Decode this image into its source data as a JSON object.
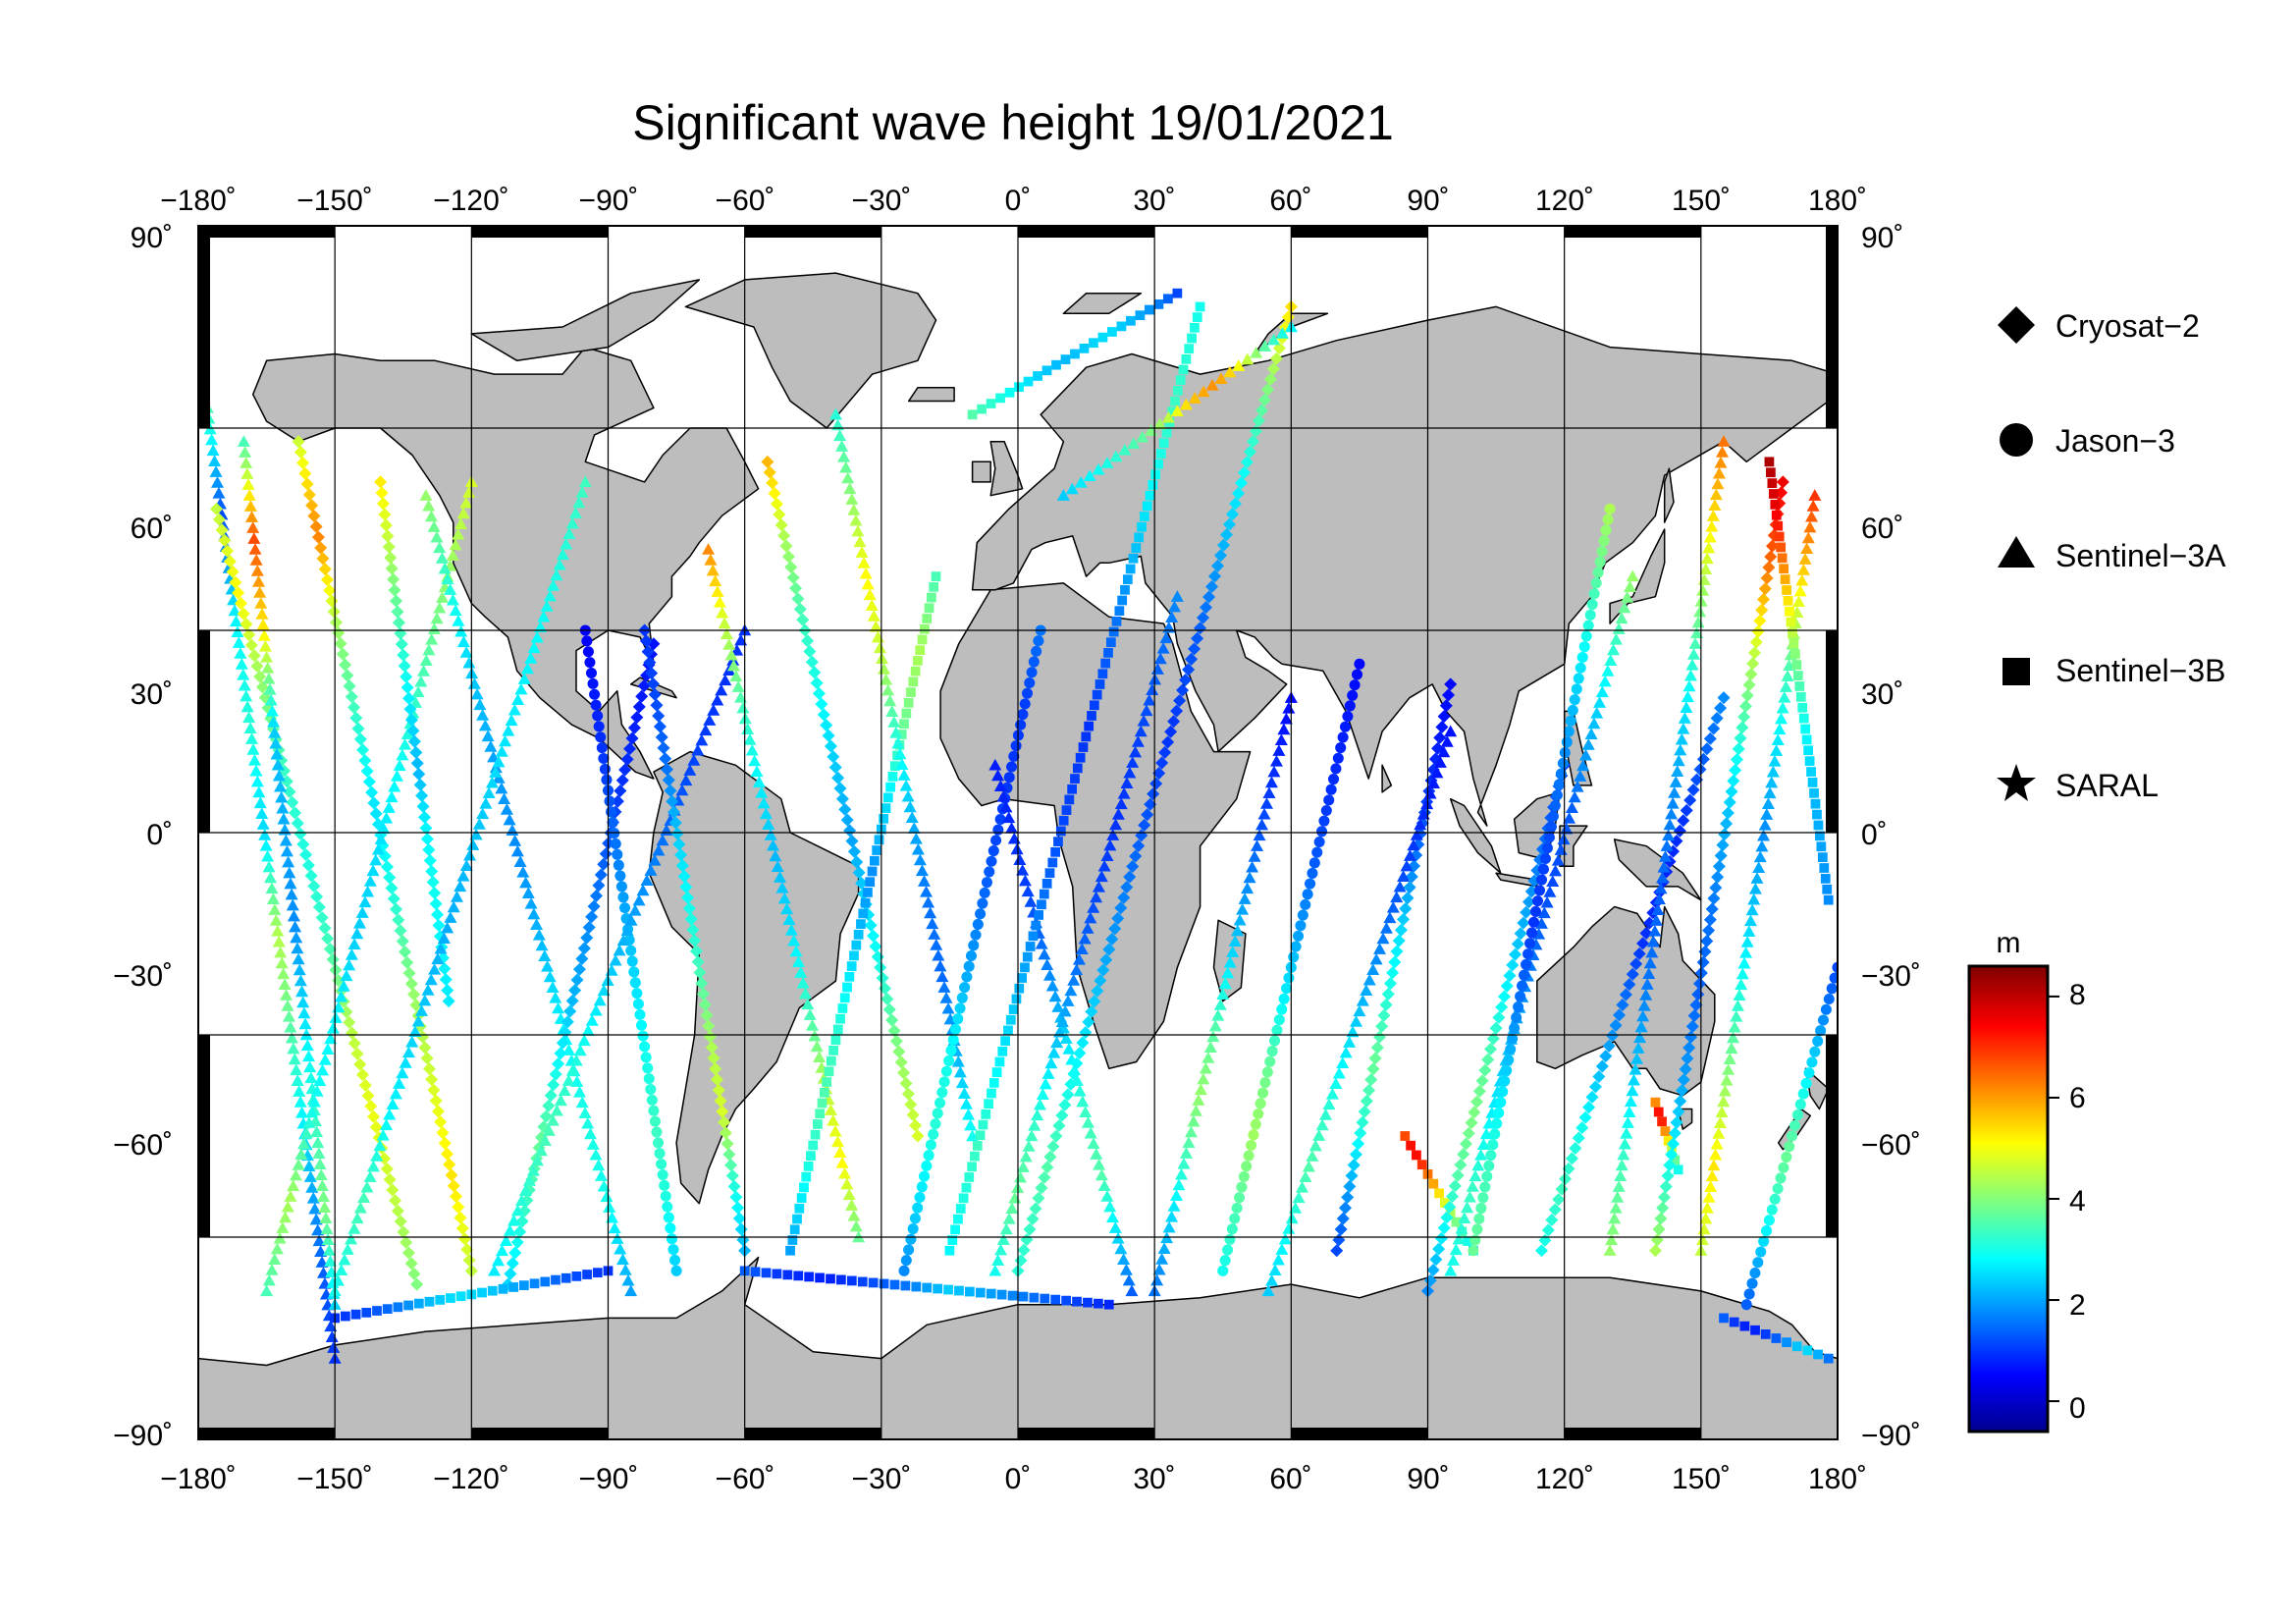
{
  "map": {
    "title": "Significant wave height 19/01/2021",
    "projection": "equirectangular",
    "lon_range": [
      -180,
      180
    ],
    "lat_range": [
      -90,
      90
    ],
    "lon_ticks": [
      -180,
      -150,
      -120,
      -90,
      -60,
      -30,
      0,
      30,
      60,
      90,
      120,
      150,
      180
    ],
    "lat_ticks": [
      90,
      60,
      30,
      0,
      -30,
      -60,
      -90
    ],
    "lon_tick_labels": [
      "−180˚",
      "−150˚",
      "−120˚",
      "−90˚",
      "−60˚",
      "−30˚",
      "0˚",
      "30˚",
      "60˚",
      "90˚",
      "120˚",
      "150˚",
      "180˚"
    ],
    "lat_tick_labels": [
      "90˚",
      "60˚",
      "30˚",
      "0˚",
      "−30˚",
      "−60˚",
      "−90˚"
    ],
    "grid": true,
    "land_color": "#bdbdbd",
    "ocean_color": "#ffffff"
  },
  "legend": {
    "placement": "right",
    "items": [
      {
        "label": "Cryosat−2",
        "marker": "diamond"
      },
      {
        "label": "Jason−3",
        "marker": "circle"
      },
      {
        "label": "Sentinel−3A",
        "marker": "triangle"
      },
      {
        "label": "Sentinel−3B",
        "marker": "square"
      },
      {
        "label": "SARAL",
        "marker": "star"
      }
    ]
  },
  "colorbar": {
    "unit": "m",
    "range": [
      -0.6,
      8.6
    ],
    "ticks": [
      0,
      2,
      4,
      6,
      8
    ],
    "tick_labels": [
      "0",
      "2",
      "4",
      "6",
      "8"
    ],
    "colormap": "jet"
  },
  "chart_data": {
    "type": "scatter",
    "title": "Significant wave height 19/01/2021",
    "xlabel": "",
    "ylabel": "",
    "xlim": [
      -180,
      180
    ],
    "ylim": [
      -90,
      90
    ],
    "value_unit": "m",
    "tracks": [
      {
        "satellite": "Sentinel-3A",
        "marker": "triangle",
        "lon": [
          -178,
          -150
        ],
        "lat": [
          63,
          -78
        ],
        "hs": [
          3.5,
          1.2,
          2.8,
          3.2,
          2.5,
          4.5,
          3.5,
          2.5,
          1.5,
          1.0
        ]
      },
      {
        "satellite": "Cryosat-2",
        "marker": "diamond",
        "lon": [
          -176,
          -132
        ],
        "lat": [
          48,
          -67
        ],
        "hs": [
          4.6,
          5.2,
          4.2,
          3.4,
          3.1,
          3.4,
          4.5,
          5.0,
          4.6,
          4.0
        ]
      },
      {
        "satellite": "Sentinel-3A",
        "marker": "triangle",
        "lon": [
          -170,
          -150
        ],
        "lat": [
          58,
          -70
        ],
        "hs": [
          3.5,
          6.8,
          5.2,
          2.4,
          2.1,
          1.8,
          2.6,
          3.3,
          4.0,
          2.5
        ]
      },
      {
        "satellite": "Cryosat-2",
        "marker": "diamond",
        "lon": [
          -158,
          -120
        ],
        "lat": [
          58,
          -65
        ],
        "hs": [
          4.7,
          6.3,
          4.3,
          3.3,
          2.6,
          3.2,
          4.2,
          4.8,
          5.4,
          4.6
        ]
      },
      {
        "satellite": "Sentinel-3A",
        "marker": "triangle",
        "lon": [
          -165,
          -120
        ],
        "lat": [
          -68,
          52
        ],
        "hs": [
          3.5,
          4.4,
          3.0,
          2.8,
          2.4,
          2.6,
          3.0,
          3.6,
          4.2,
          4.8
        ]
      },
      {
        "satellite": "Cryosat-2",
        "marker": "diamond",
        "lon": [
          -140,
          -125
        ],
        "lat": [
          52,
          -25
        ],
        "hs": [
          5.3,
          4.6,
          3.8,
          3.2,
          2.6,
          2.2,
          2.8,
          3.0,
          2.8,
          2.7
        ]
      },
      {
        "satellite": "Sentinel-3A",
        "marker": "triangle",
        "lon": [
          -130,
          -85
        ],
        "lat": [
          50,
          -68
        ],
        "hs": [
          4.2,
          3.2,
          2.4,
          2.0,
          1.8,
          2.2,
          2.8,
          3.1,
          3.0,
          2.0
        ]
      },
      {
        "satellite": "Sentinel-3A",
        "marker": "triangle",
        "lon": [
          -150,
          -95
        ],
        "lat": [
          -68,
          52
        ],
        "hs": [
          3.0,
          3.5,
          2.8,
          2.4,
          2.1,
          2.3,
          2.6,
          2.8,
          3.1,
          3.4
        ]
      },
      {
        "satellite": "Cryosat-2",
        "marker": "diamond",
        "lon": [
          -112,
          -80
        ],
        "lat": [
          -67,
          28
        ],
        "hs": [
          2.5,
          3.3,
          3.8,
          3.0,
          2.2,
          1.8,
          1.4,
          1.0,
          0.8,
          0.7
        ]
      },
      {
        "satellite": "Jason-3",
        "marker": "circle",
        "lon": [
          -95,
          -75
        ],
        "lat": [
          30,
          -65
        ],
        "hs": [
          0.5,
          0.8,
          1.1,
          1.6,
          2.1,
          2.6,
          3.0,
          3.4,
          3.1,
          2.4
        ]
      },
      {
        "satellite": "Sentinel-3A",
        "marker": "triangle",
        "lon": [
          -115,
          -60
        ],
        "lat": [
          -65,
          30
        ],
        "hs": [
          2.7,
          3.2,
          3.5,
          3.1,
          2.5,
          2.0,
          1.6,
          1.2,
          1.0,
          1.0
        ]
      },
      {
        "satellite": "Cryosat-2",
        "marker": "diamond",
        "lon": [
          -82,
          -60
        ],
        "lat": [
          30,
          -62
        ],
        "hs": [
          1.0,
          1.2,
          1.6,
          2.4,
          3.0,
          3.5,
          4.4,
          4.8,
          3.2,
          2.2
        ]
      },
      {
        "satellite": "Sentinel-3A",
        "marker": "triangle",
        "lon": [
          -68,
          -35
        ],
        "lat": [
          42,
          -60
        ],
        "hs": [
          6.2,
          4.6,
          3.5,
          2.8,
          2.2,
          2.6,
          3.4,
          4.5,
          5.2,
          3.8
        ]
      },
      {
        "satellite": "Cryosat-2",
        "marker": "diamond",
        "lon": [
          -55,
          -22
        ],
        "lat": [
          55,
          -45
        ],
        "hs": [
          5.8,
          4.4,
          3.5,
          3.0,
          2.4,
          2.0,
          2.6,
          3.3,
          4.2,
          4.8
        ]
      },
      {
        "satellite": "Sentinel-3B",
        "marker": "square",
        "lon": [
          -50,
          -18
        ],
        "lat": [
          -62,
          38
        ],
        "hs": [
          2.0,
          3.0,
          3.6,
          3.2,
          2.4,
          1.8,
          2.6,
          3.8,
          4.4,
          3.5
        ]
      },
      {
        "satellite": "Sentinel-3A",
        "marker": "triangle",
        "lon": [
          -40,
          -10
        ],
        "lat": [
          62,
          -45
        ],
        "hs": [
          3.2,
          4.1,
          5.2,
          4.6,
          3.2,
          2.2,
          1.6,
          1.5,
          2.2,
          3.0
        ]
      },
      {
        "satellite": "Jason-3",
        "marker": "circle",
        "lon": [
          -25,
          5
        ],
        "lat": [
          -65,
          30
        ],
        "hs": [
          1.8,
          2.6,
          3.2,
          3.0,
          2.2,
          1.6,
          1.2,
          1.0,
          1.1,
          1.6
        ]
      },
      {
        "satellite": "Sentinel-3A",
        "marker": "triangle",
        "lon": [
          -5,
          25
        ],
        "lat": [
          10,
          -68
        ],
        "hs": [
          0.8,
          0.9,
          1.1,
          1.5,
          2.0,
          2.8,
          3.4,
          3.6,
          2.6,
          1.4
        ]
      },
      {
        "satellite": "Sentinel-3B",
        "marker": "square",
        "lon": [
          -15,
          40
        ],
        "lat": [
          -62,
          78
        ],
        "hs": [
          2.8,
          3.4,
          2.6,
          1.8,
          1.2,
          1.0,
          1.6,
          2.6,
          3.4,
          3.0
        ]
      },
      {
        "satellite": "Sentinel-3A",
        "marker": "triangle",
        "lon": [
          -5,
          35
        ],
        "lat": [
          -65,
          35
        ],
        "hs": [
          3.0,
          3.8,
          3.3,
          2.4,
          1.6,
          1.2,
          1.0,
          1.1,
          1.4,
          1.8
        ]
      },
      {
        "satellite": "Cryosat-2",
        "marker": "diamond",
        "lon": [
          0,
          60
        ],
        "lat": [
          -65,
          78
        ],
        "hs": [
          3.2,
          3.6,
          2.8,
          2.0,
          1.4,
          1.0,
          1.4,
          2.4,
          3.6,
          5.4
        ]
      },
      {
        "satellite": "Jason-3",
        "marker": "circle",
        "lon": [
          45,
          75
        ],
        "lat": [
          -65,
          25
        ],
        "hs": [
          3.0,
          3.6,
          4.3,
          3.8,
          2.8,
          2.0,
          1.4,
          1.0,
          0.8,
          0.6
        ]
      },
      {
        "satellite": "Sentinel-3A",
        "marker": "triangle",
        "lon": [
          60,
          30
        ],
        "lat": [
          20,
          -68
        ],
        "hs": [
          0.6,
          0.9,
          1.3,
          1.9,
          2.6,
          3.6,
          4.2,
          3.4,
          2.4,
          1.6
        ]
      },
      {
        "satellite": "Cryosat-2",
        "marker": "diamond",
        "lon": [
          95,
          70
        ],
        "lat": [
          22,
          -62
        ],
        "hs": [
          0.6,
          0.8,
          1.2,
          1.8,
          2.6,
          3.2,
          3.8,
          3.2,
          2.0,
          1.2
        ]
      },
      {
        "satellite": "Sentinel-3A",
        "marker": "triangle",
        "lon": [
          55,
          95
        ],
        "lat": [
          -68,
          15
        ],
        "hs": [
          2.4,
          3.0,
          3.6,
          3.2,
          2.6,
          2.0,
          1.5,
          1.1,
          0.8,
          0.7
        ]
      },
      {
        "satellite": "Sentinel-3B",
        "marker": "square",
        "lon": [
          85,
          100
        ],
        "lat": [
          -45,
          -62
        ],
        "hs": [
          6.8,
          7.5,
          7.2,
          6.4,
          5.8,
          5.0,
          4.4,
          3.8,
          3.2,
          2.6
        ]
      },
      {
        "satellite": "Cryosat-2",
        "marker": "diamond",
        "lon": [
          120,
          90
        ],
        "lat": [
          10,
          -68
        ],
        "hs": [
          1.2,
          1.4,
          1.8,
          2.3,
          2.9,
          3.6,
          4.0,
          3.6,
          2.8,
          1.8
        ]
      },
      {
        "satellite": "Sentinel-3A",
        "marker": "triangle",
        "lon": [
          95,
          135
        ],
        "lat": [
          -65,
          38
        ],
        "hs": [
          3.0,
          3.4,
          2.8,
          2.2,
          1.6,
          1.2,
          1.4,
          2.2,
          3.2,
          4.2
        ]
      },
      {
        "satellite": "Jason-3",
        "marker": "circle",
        "lon": [
          130,
          100
        ],
        "lat": [
          48,
          -62
        ],
        "hs": [
          4.4,
          3.5,
          2.6,
          1.8,
          1.2,
          1.0,
          1.6,
          2.6,
          3.4,
          3.8
        ]
      },
      {
        "satellite": "Cryosat-2",
        "marker": "diamond",
        "lon": [
          115,
          155
        ],
        "lat": [
          -62,
          20
        ],
        "hs": [
          3.0,
          3.4,
          3.0,
          2.2,
          1.6,
          1.0,
          0.8,
          1.0,
          1.4,
          1.8
        ]
      },
      {
        "satellite": "Sentinel-3B",
        "marker": "square",
        "lon": [
          140,
          145
        ],
        "lat": [
          -40,
          -50
        ],
        "hs": [
          6.2,
          7.2,
          7.6,
          6.8,
          6.0,
          5.4,
          4.8,
          4.2,
          3.6,
          3.0
        ]
      },
      {
        "satellite": "Sentinel-3A",
        "marker": "triangle",
        "lon": [
          155,
          130
        ],
        "lat": [
          58,
          -62
        ],
        "hs": [
          6.4,
          5.2,
          3.8,
          2.6,
          1.8,
          1.4,
          1.6,
          2.4,
          3.4,
          4.2
        ]
      },
      {
        "satellite": "Cryosat-2",
        "marker": "diamond",
        "lon": [
          168,
          140
        ],
        "lat": [
          52,
          -62
        ],
        "hs": [
          7.6,
          6.4,
          4.6,
          3.2,
          2.2,
          1.6,
          1.4,
          2.0,
          3.0,
          4.4
        ]
      },
      {
        "satellite": "Sentinel-3A",
        "marker": "triangle",
        "lon": [
          150,
          175
        ],
        "lat": [
          -62,
          50
        ],
        "hs": [
          4.6,
          5.4,
          4.2,
          3.2,
          2.4,
          1.8,
          2.6,
          3.6,
          5.4,
          7.0
        ]
      },
      {
        "satellite": "Sentinel-3B",
        "marker": "square",
        "lon": [
          165,
          178
        ],
        "lat": [
          55,
          -10
        ],
        "hs": [
          8.2,
          7.6,
          6.4,
          5.2,
          4.0,
          3.2,
          2.6,
          2.2,
          2.0,
          1.8
        ]
      },
      {
        "satellite": "Jason-3",
        "marker": "circle",
        "lon": [
          180,
          160
        ],
        "lat": [
          -20,
          -70
        ],
        "hs": [
          1.2,
          1.6,
          2.2,
          2.8,
          3.4,
          3.8,
          3.4,
          2.8,
          2.0,
          1.4
        ]
      },
      {
        "satellite": "Sentinel-3B",
        "marker": "square",
        "lon": [
          -10,
          35
        ],
        "lat": [
          62,
          80
        ],
        "hs": [
          3.6,
          3.2,
          2.8,
          2.4,
          2.2,
          2.4,
          2.6,
          2.2,
          1.8,
          1.2
        ]
      },
      {
        "satellite": "Sentinel-3A",
        "marker": "triangle",
        "lon": [
          10,
          60
        ],
        "lat": [
          50,
          75
        ],
        "hs": [
          2.4,
          2.8,
          3.2,
          3.6,
          4.4,
          5.6,
          6.2,
          5.0,
          3.6,
          2.8
        ]
      },
      {
        "satellite": "Sentinel-3B",
        "marker": "square",
        "lon": [
          -150,
          -90
        ],
        "lat": [
          -72,
          -65
        ],
        "hs": [
          1.0,
          1.2,
          1.6,
          2.2,
          2.6,
          2.4,
          2.0,
          1.6,
          1.2,
          1.0
        ]
      },
      {
        "satellite": "Sentinel-3B",
        "marker": "square",
        "lon": [
          -60,
          20
        ],
        "lat": [
          -65,
          -70
        ],
        "hs": [
          1.4,
          1.0,
          0.8,
          1.2,
          1.6,
          2.4,
          2.0,
          1.6,
          1.2,
          0.9
        ]
      },
      {
        "satellite": "Sentinel-3B",
        "marker": "square",
        "lon": [
          155,
          178
        ],
        "lat": [
          -72,
          -78
        ],
        "hs": [
          1.4,
          1.0,
          0.8,
          0.9,
          1.2,
          1.6,
          2.2,
          2.6,
          2.2,
          1.6
        ]
      }
    ]
  }
}
